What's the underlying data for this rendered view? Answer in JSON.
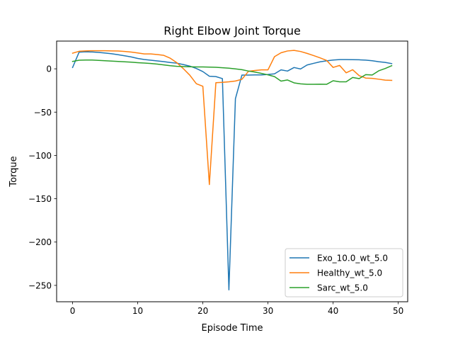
{
  "chart_data": {
    "type": "line",
    "title": "Right Elbow Joint Torque",
    "xlabel": "Episode Time",
    "ylabel": "Torque",
    "xlim": [
      -2.45,
      51.45
    ],
    "ylim": [
      -268.9,
      32.0
    ],
    "xticks": [
      0,
      10,
      20,
      30,
      40,
      50
    ],
    "yticks": [
      0,
      -50,
      -100,
      -150,
      -200,
      -250
    ],
    "grid": false,
    "legend_position": "lower-right",
    "series": [
      {
        "name": "Exo_10.0_wt_5.0",
        "color": "#1f77b4",
        "x": [
          0,
          1,
          2,
          3,
          4,
          5,
          6,
          7,
          8,
          9,
          10,
          11,
          12,
          13,
          14,
          15,
          16,
          17,
          18,
          19,
          20,
          21,
          22,
          23,
          24,
          25,
          26,
          27,
          28,
          29,
          30,
          31,
          32,
          33,
          34,
          35,
          36,
          37,
          38,
          39,
          40,
          41,
          42,
          43,
          44,
          45,
          46,
          47,
          48,
          49
        ],
        "y": [
          1.5,
          19.2,
          19.6,
          19.4,
          18.9,
          18.2,
          17.4,
          16.3,
          15.0,
          13.7,
          12.0,
          10.7,
          9.9,
          9.1,
          8.3,
          7.3,
          6.5,
          4.9,
          3.1,
          0.4,
          -3.2,
          -8.6,
          -9.0,
          -11.3,
          -255.2,
          -34.5,
          -7.2,
          -7.2,
          -7.0,
          -7.0,
          -6.5,
          -5.8,
          -1.2,
          -2.6,
          1.5,
          -0.2,
          4.4,
          6.3,
          8.1,
          9.2,
          10.1,
          10.6,
          10.6,
          10.5,
          10.4,
          10.0,
          9.3,
          8.2,
          7.4,
          6.0
        ]
      },
      {
        "name": "Healthy_wt_5.0",
        "color": "#ff7f0e",
        "x": [
          0,
          1,
          2,
          3,
          4,
          5,
          6,
          7,
          8,
          9,
          10,
          11,
          12,
          13,
          14,
          15,
          16,
          17,
          18,
          19,
          20,
          21,
          22,
          23,
          24,
          25,
          26,
          27,
          28,
          29,
          30,
          31,
          32,
          33,
          34,
          35,
          36,
          37,
          38,
          39,
          40,
          41,
          42,
          43,
          44,
          45,
          46,
          47,
          48,
          49
        ],
        "y": [
          18.0,
          20.2,
          20.7,
          20.9,
          20.9,
          20.9,
          20.7,
          20.5,
          20.0,
          19.3,
          18.3,
          17.2,
          17.2,
          16.5,
          15.5,
          12.2,
          7.1,
          0.2,
          -7.4,
          -17.2,
          -20.2,
          -133.6,
          -16.0,
          -15.6,
          -15.0,
          -14.1,
          -12.1,
          -2.9,
          -1.9,
          -1.2,
          -1.2,
          14.0,
          18.5,
          20.6,
          21.3,
          20.0,
          17.8,
          15.3,
          12.6,
          9.7,
          1.6,
          3.9,
          -4.6,
          -1.1,
          -7.9,
          -10.7,
          -11.0,
          -12.0,
          -13.1,
          -13.4
        ]
      },
      {
        "name": "Sarc_wt_5.0",
        "color": "#2ca02c",
        "x": [
          0,
          1,
          2,
          3,
          4,
          5,
          6,
          7,
          8,
          9,
          10,
          11,
          12,
          13,
          14,
          15,
          16,
          17,
          18,
          19,
          20,
          21,
          22,
          23,
          24,
          25,
          26,
          27,
          28,
          29,
          30,
          31,
          32,
          33,
          34,
          35,
          36,
          37,
          38,
          39,
          40,
          41,
          42,
          43,
          44,
          45,
          46,
          47,
          48,
          49
        ],
        "y": [
          8.5,
          9.9,
          10.1,
          10.1,
          9.7,
          9.3,
          8.9,
          8.5,
          8.1,
          7.7,
          7.1,
          6.6,
          6.1,
          5.4,
          4.5,
          3.6,
          2.9,
          2.6,
          2.4,
          2.2,
          2.2,
          2.0,
          1.7,
          1.2,
          0.7,
          -0.1,
          -1.0,
          -2.6,
          -3.8,
          -5.3,
          -7.0,
          -9.0,
          -14.2,
          -12.9,
          -16.2,
          -17.4,
          -17.9,
          -17.9,
          -17.8,
          -17.9,
          -13.8,
          -15.0,
          -15.0,
          -10.0,
          -11.3,
          -6.7,
          -7.1,
          -2.3,
          0.4,
          3.6
        ]
      }
    ]
  }
}
